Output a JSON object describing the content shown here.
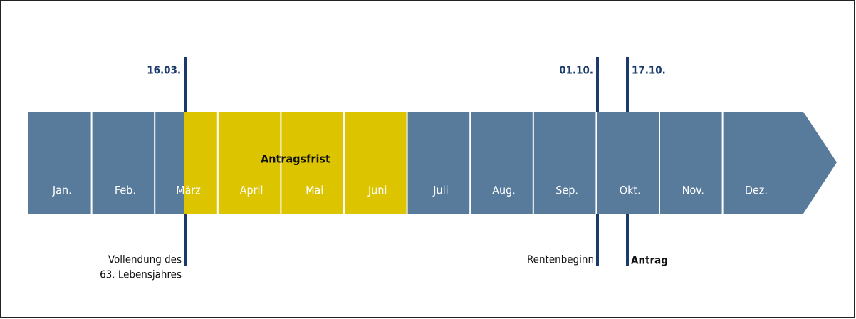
{
  "timeline": {
    "months": [
      "Jan.",
      "Feb.",
      "März",
      "April",
      "Mai",
      "Juni",
      "Juli",
      "Aug.",
      "Sep.",
      "Okt.",
      "Nov.",
      "Dez."
    ],
    "period": {
      "label": "Antragsfrist"
    },
    "markers": [
      {
        "date": "16.03.",
        "label": [
          "Vollendung des",
          "63. Lebensjahres"
        ]
      },
      {
        "date": "01.10.",
        "label": [
          "Rentenbeginn"
        ]
      },
      {
        "date": "17.10.",
        "label": [
          "Antrag"
        ]
      }
    ]
  }
}
